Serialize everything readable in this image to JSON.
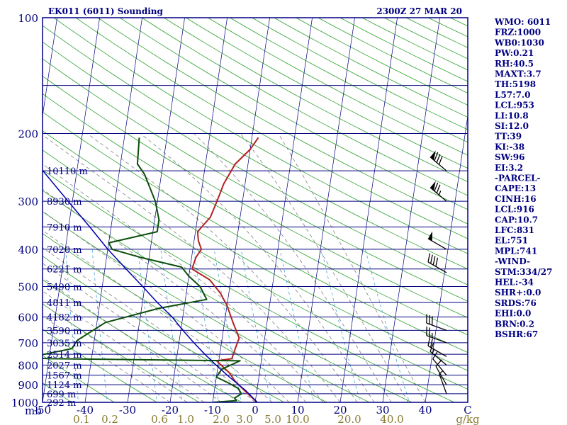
{
  "title": "EK011 (6011) Sounding",
  "timestamp": "2300Z 27 MAR 20",
  "colors": {
    "background": "#ffffff",
    "border": "#000080",
    "isobar": "#00007f",
    "isotherm": "#00007f",
    "dry_adiabat": "#2ca02c",
    "moist_adiabat": "#808080",
    "mixing_ratio": "#3fa9d6",
    "temperature": "#b22222",
    "dewpoint": "#0b4f0b",
    "parcel": "#0000aa",
    "wind": "#000000",
    "text": "#000080",
    "mixing_label": "#8a7a30"
  },
  "chart_data": {
    "type": "skew-t",
    "title": "EK011 (6011) Sounding",
    "xlabel": "°C",
    "ylabel": "mb",
    "p_range": [
      1000,
      100
    ],
    "t_range": [
      -50,
      50
    ],
    "pressure_ticks": [
      "100",
      "200",
      "300",
      "400",
      "500",
      "600",
      "700",
      "800",
      "900",
      "1000"
    ],
    "isobars": [
      100,
      150,
      200,
      250,
      300,
      350,
      400,
      450,
      500,
      550,
      600,
      650,
      700,
      750,
      800,
      850,
      900,
      950,
      1000
    ],
    "temperature_ticks": [
      "-50",
      "-40",
      "-30",
      "-20",
      "-10",
      "0",
      "10",
      "20",
      "30",
      "40",
      "C"
    ],
    "temperature_tick_values": [
      -50,
      -40,
      -30,
      -20,
      -10,
      0,
      10,
      20,
      30,
      40,
      50
    ],
    "mixing_ratio_labels": [
      "0.1",
      "0.2",
      "0.6",
      "1.0",
      "2.0",
      "3.0",
      "5.0",
      "10.0",
      "20.0",
      "40.0"
    ],
    "mixing_ratio_unit": "g/kg",
    "height_labels": [
      {
        "p": 250,
        "text": "10110 m"
      },
      {
        "p": 300,
        "text": "8930 m"
      },
      {
        "p": 350,
        "text": "7910 m"
      },
      {
        "p": 400,
        "text": "7020 m"
      },
      {
        "p": 450,
        "text": "6221 m"
      },
      {
        "p": 500,
        "text": "5490 m"
      },
      {
        "p": 550,
        "text": "4811 m"
      },
      {
        "p": 600,
        "text": "4182 m"
      },
      {
        "p": 650,
        "text": "3590 m"
      },
      {
        "p": 700,
        "text": "3035 m"
      },
      {
        "p": 750,
        "text": "2514 m"
      },
      {
        "p": 800,
        "text": "2027 m"
      },
      {
        "p": 850,
        "text": "1567 m"
      },
      {
        "p": 900,
        "text": "1124 m"
      },
      {
        "p": 950,
        "text": "699 m"
      },
      {
        "p": 1000,
        "text": "292 m"
      }
    ],
    "series": [
      {
        "name": "Temperature",
        "points": [
          [
            1000,
            0.5
          ],
          [
            960,
            -1.5
          ],
          [
            920,
            -3.5
          ],
          [
            880,
            -5.5
          ],
          [
            840,
            -7
          ],
          [
            780,
            -10.5
          ],
          [
            770,
            -7
          ],
          [
            720,
            -6.5
          ],
          [
            680,
            -6
          ],
          [
            620,
            -8
          ],
          [
            560,
            -10
          ],
          [
            520,
            -12
          ],
          [
            480,
            -15
          ],
          [
            450,
            -19.5
          ],
          [
            420,
            -19
          ],
          [
            400,
            -18
          ],
          [
            380,
            -19
          ],
          [
            360,
            -19.5
          ],
          [
            330,
            -17
          ],
          [
            300,
            -16
          ],
          [
            270,
            -15
          ],
          [
            240,
            -13
          ],
          [
            220,
            -10
          ],
          [
            205,
            -8.5
          ]
        ]
      },
      {
        "name": "Dewpoint",
        "points": [
          [
            1000,
            -10
          ],
          [
            990,
            -4.5
          ],
          [
            975,
            -5
          ],
          [
            950,
            -3.5
          ],
          [
            920,
            -4.5
          ],
          [
            890,
            -7
          ],
          [
            860,
            -10
          ],
          [
            820,
            -9
          ],
          [
            780,
            -5
          ],
          [
            770,
            -50
          ],
          [
            765,
            -55
          ],
          [
            725,
            -45
          ],
          [
            690,
            -44
          ],
          [
            620,
            -38
          ],
          [
            570,
            -26
          ],
          [
            540,
            -15
          ],
          [
            500,
            -17
          ],
          [
            470,
            -20
          ],
          [
            445,
            -22
          ],
          [
            420,
            -32
          ],
          [
            400,
            -39
          ],
          [
            385,
            -40
          ],
          [
            360,
            -29
          ],
          [
            335,
            -29
          ],
          [
            300,
            -30.5
          ],
          [
            280,
            -32
          ],
          [
            255,
            -34
          ],
          [
            240,
            -36
          ],
          [
            205,
            -36.5
          ]
        ]
      },
      {
        "name": "Parcel",
        "points": [
          [
            1000,
            0.5
          ],
          [
            960,
            -1.3
          ],
          [
            930,
            -2.7
          ],
          [
            900,
            -4.5
          ],
          [
            850,
            -7.5
          ],
          [
            800,
            -10.5
          ],
          [
            750,
            -13.5
          ],
          [
            700,
            -16.5
          ],
          [
            650,
            -19.5
          ],
          [
            600,
            -22.5
          ],
          [
            550,
            -26.5
          ],
          [
            500,
            -30.5
          ],
          [
            450,
            -35
          ],
          [
            400,
            -40
          ],
          [
            350,
            -45
          ],
          [
            300,
            -51
          ],
          [
            250,
            -58
          ],
          [
            200,
            -66
          ],
          [
            150,
            -75
          ],
          [
            110,
            -84
          ]
        ]
      }
    ],
    "wind_barbs": [
      {
        "p": 250,
        "dir": 310,
        "speed": 80
      },
      {
        "p": 300,
        "dir": 310,
        "speed": 75
      },
      {
        "p": 400,
        "dir": 300,
        "speed": 50
      },
      {
        "p": 460,
        "dir": 300,
        "speed": 40
      },
      {
        "p": 650,
        "dir": 290,
        "speed": 30
      },
      {
        "p": 700,
        "dir": 290,
        "speed": 25
      },
      {
        "p": 760,
        "dir": 300,
        "speed": 20
      },
      {
        "p": 800,
        "dir": 310,
        "speed": 15
      },
      {
        "p": 850,
        "dir": 320,
        "speed": 10
      },
      {
        "p": 900,
        "dir": 330,
        "speed": 10
      },
      {
        "p": 950,
        "dir": 340,
        "speed": 5
      }
    ]
  },
  "indices": [
    "WMO: 6011",
    "FRZ:1000",
    "WB0:1030",
    "PW:0.21",
    "RH:40.5",
    "MAXT:3.7",
    "TH:5198",
    "L57:7.0",
    "LCL:953",
    "LI:10.8",
    "SI:12.0",
    "TT:39",
    "KI:-38",
    "SW:96",
    "EI:3.2",
    "-PARCEL-",
    "CAPE:13",
    "CINH:16",
    "LCL:916",
    "CAP:10.7",
    "LFC:831",
    "EL:751",
    "MPL:741",
    "-WIND-",
    "STM:334/27",
    "HEL:-34",
    "SHR+:0.0",
    "SRDS:76",
    "EHI:0.0",
    "BRN:0.2",
    "BSHR:67"
  ]
}
